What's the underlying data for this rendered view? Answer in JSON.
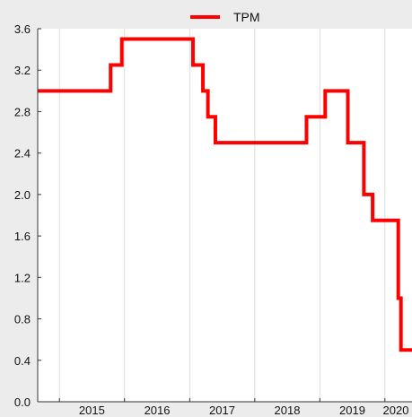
{
  "chart_data": {
    "type": "line",
    "title": "",
    "xlabel": "",
    "ylabel": "",
    "grid": true,
    "legend_position": "top-center",
    "ylim": [
      0.0,
      3.6
    ],
    "xlim": [
      "2014-09-01",
      "2020-06-01"
    ],
    "y_ticks": [
      0.0,
      0.4,
      0.8,
      1.2,
      1.6,
      2.0,
      2.4,
      2.8,
      3.2,
      3.6
    ],
    "y_tick_labels": [
      "0.0",
      "0.4",
      "0.8",
      "1.2",
      "1.6",
      "2.0",
      "2.4",
      "2.8",
      "3.2",
      "3.6"
    ],
    "x_tick_dates": [
      "2015-01-01",
      "2016-01-01",
      "2017-01-01",
      "2018-01-01",
      "2019-01-01",
      "2020-01-01"
    ],
    "x_tick_labels": [
      "2015",
      "2016",
      "2017",
      "2018",
      "2019",
      "2020"
    ],
    "series": [
      {
        "name": "TPM",
        "color": "#ff0000",
        "step": true,
        "points": [
          {
            "x": "2014-09-01",
            "y": 3.0
          },
          {
            "x": "2015-10-15",
            "y": 3.25
          },
          {
            "x": "2015-12-17",
            "y": 3.5
          },
          {
            "x": "2016-12-15",
            "y": 3.5
          },
          {
            "x": "2017-01-19",
            "y": 3.25
          },
          {
            "x": "2017-03-16",
            "y": 3.0
          },
          {
            "x": "2017-04-13",
            "y": 2.75
          },
          {
            "x": "2017-05-25",
            "y": 2.5
          },
          {
            "x": "2018-10-18",
            "y": 2.75
          },
          {
            "x": "2019-01-31",
            "y": 3.0
          },
          {
            "x": "2019-06-07",
            "y": 2.5
          },
          {
            "x": "2019-09-05",
            "y": 2.0
          },
          {
            "x": "2019-10-24",
            "y": 1.75
          },
          {
            "x": "2020-03-16",
            "y": 1.0
          },
          {
            "x": "2020-03-31",
            "y": 0.5
          },
          {
            "x": "2020-06-01",
            "y": 0.5
          }
        ]
      }
    ]
  }
}
